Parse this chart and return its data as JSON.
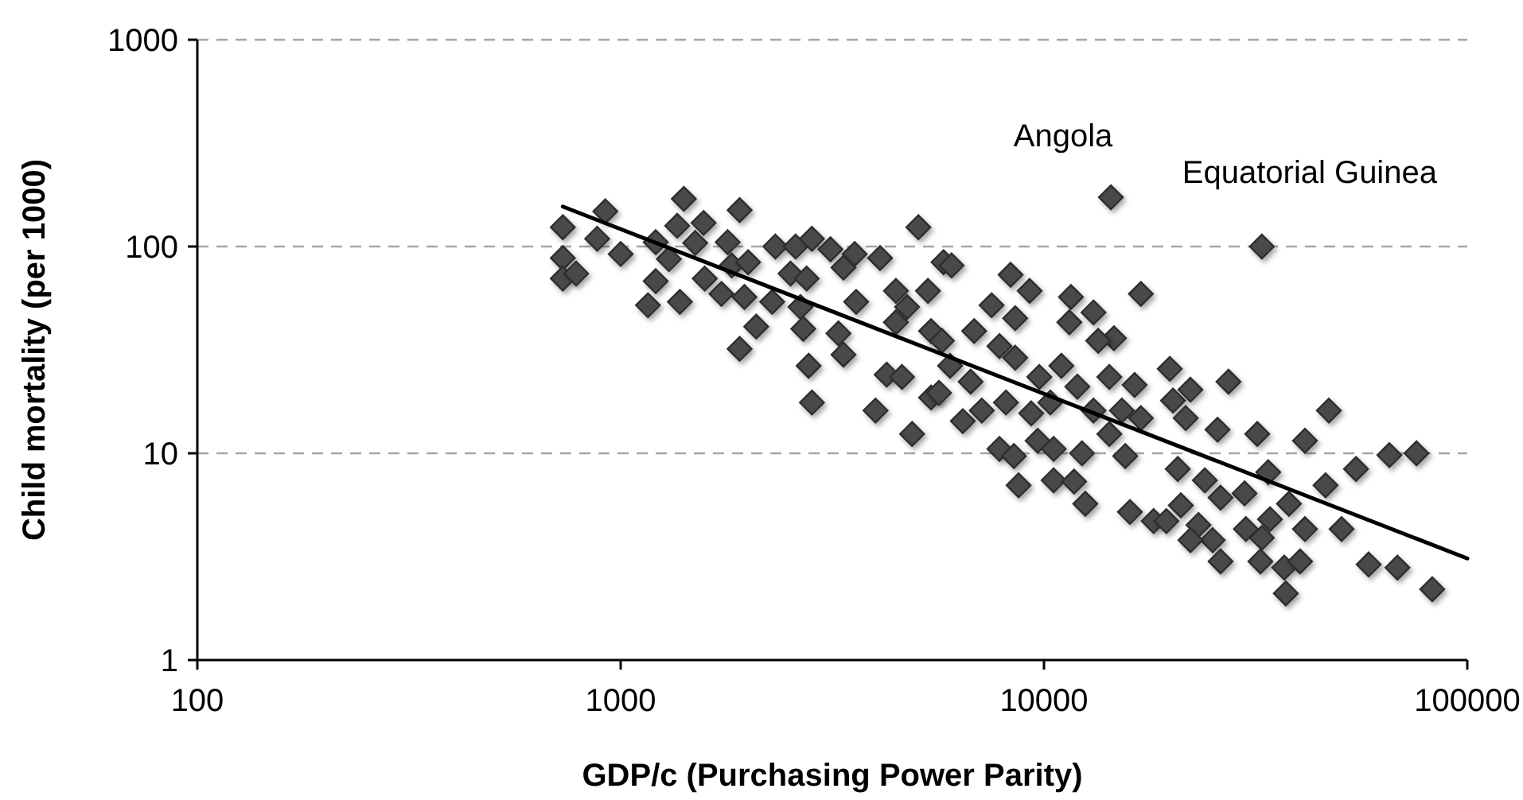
{
  "chart_data": {
    "type": "scatter",
    "xlabel": "GDP/c (Purchasing Power Parity)",
    "ylabel": "Child mortality (per 1000)",
    "log": "xy",
    "xlim": [
      100,
      100000
    ],
    "xticks": [
      100,
      1000,
      10000,
      100000
    ],
    "ylim": [
      1,
      1000
    ],
    "yticks": [
      1,
      10,
      100,
      1000
    ],
    "grid": "y",
    "marker": "diamond",
    "annotations": [
      {
        "text": "Angola",
        "x": 14390,
        "y": 173
      },
      {
        "text": "Equatorial Guinea",
        "x": 32710,
        "y": 100
      }
    ],
    "series": [
      {
        "color": "#4a4a4a",
        "x": [
          730,
          730,
          730,
          785,
          920,
          880,
          1000,
          1210,
          1410,
          1360,
          1570,
          1300,
          1210,
          1160,
          1380,
          1580,
          1730,
          1790,
          1500,
          1910,
          1910,
          1830,
          2320,
          2000,
          1960,
          2090,
          2590,
          2830,
          3130,
          3570,
          3360,
          4100,
          5050,
          2520,
          2750,
          2280,
          2660,
          2700,
          3600,
          3270,
          3360,
          2780,
          2830,
          4470,
          5320,
          4750,
          4470,
          5410,
          5740,
          4250,
          4620,
          4000,
          4880,
          5410,
          5790,
          6050,
          8340,
          9250,
          7520,
          8550,
          11580,
          13090,
          14630,
          13430,
          11480,
          16940,
          6840,
          7850,
          8550,
          6000,
          6710,
          9750,
          10990,
          11990,
          14270,
          16370,
          6430,
          7130,
          8130,
          9330,
          10350,
          13090,
          15280,
          16940,
          9660,
          10540,
          7850,
          8490,
          12300,
          14270,
          15560,
          8710,
          10540,
          11780,
          12520,
          15960,
          18160,
          5650,
          27280,
          20170,
          21620,
          25700,
          31900,
          41350,
          47100,
          54580,
          65460,
          75860,
          46260,
          33870,
          23990,
          20700,
          29770,
          26130,
          19460,
          21050,
          23170,
          25030,
          29990,
          34190,
          37900,
          41350,
          32710,
          26130,
          32450,
          36950,
          40270,
          37260,
          50470,
          58480,
          68390,
          82630,
          22180,
          32710,
          14390,
          19820,
          22180
        ],
        "values": [
          124,
          88,
          70,
          74,
          148,
          109,
          92,
          105,
          170,
          126,
          130,
          87,
          68,
          52,
          54,
          70,
          59,
          105,
          104,
          32,
          150,
          81,
          100,
          84,
          57,
          41,
          100,
          109,
          97,
          92,
          79,
          88,
          124,
          74,
          70,
          54,
          51,
          40,
          54,
          38,
          30,
          26.5,
          17.6,
          61,
          61,
          51,
          43,
          39,
          35,
          24,
          23.4,
          16.1,
          12.4,
          18.6,
          84,
          81,
          73,
          61,
          52,
          45,
          57,
          48,
          36,
          35,
          43,
          59,
          39,
          33,
          29,
          26.5,
          22.2,
          23.4,
          26.5,
          21,
          23.4,
          21.4,
          14.3,
          16.1,
          17.6,
          15.6,
          17.6,
          16.1,
          16.1,
          14.8,
          11.5,
          10.5,
          10.5,
          9.7,
          10,
          12.4,
          9.7,
          7.0,
          7.4,
          7.3,
          5.7,
          5.2,
          4.7,
          19.6,
          22.2,
          18,
          14.8,
          13,
          12.4,
          11.5,
          16.1,
          8.4,
          9.8,
          10,
          7.0,
          8.1,
          7.4,
          8.4,
          6.4,
          6.1,
          4.7,
          5.6,
          4.5,
          3.8,
          4.3,
          4.8,
          5.7,
          4.3,
          3.9,
          3.0,
          3.0,
          2.8,
          3.0,
          2.1,
          4.3,
          2.9,
          2.8,
          2.2,
          3.8,
          100,
          173,
          25.6,
          20.3
        ]
      },
      {
        "type": "line",
        "color": "#000000",
        "marker": "none",
        "line_style": "solid",
        "x": [
          730,
          100000
        ],
        "values": [
          156,
          3.1
        ]
      }
    ]
  }
}
